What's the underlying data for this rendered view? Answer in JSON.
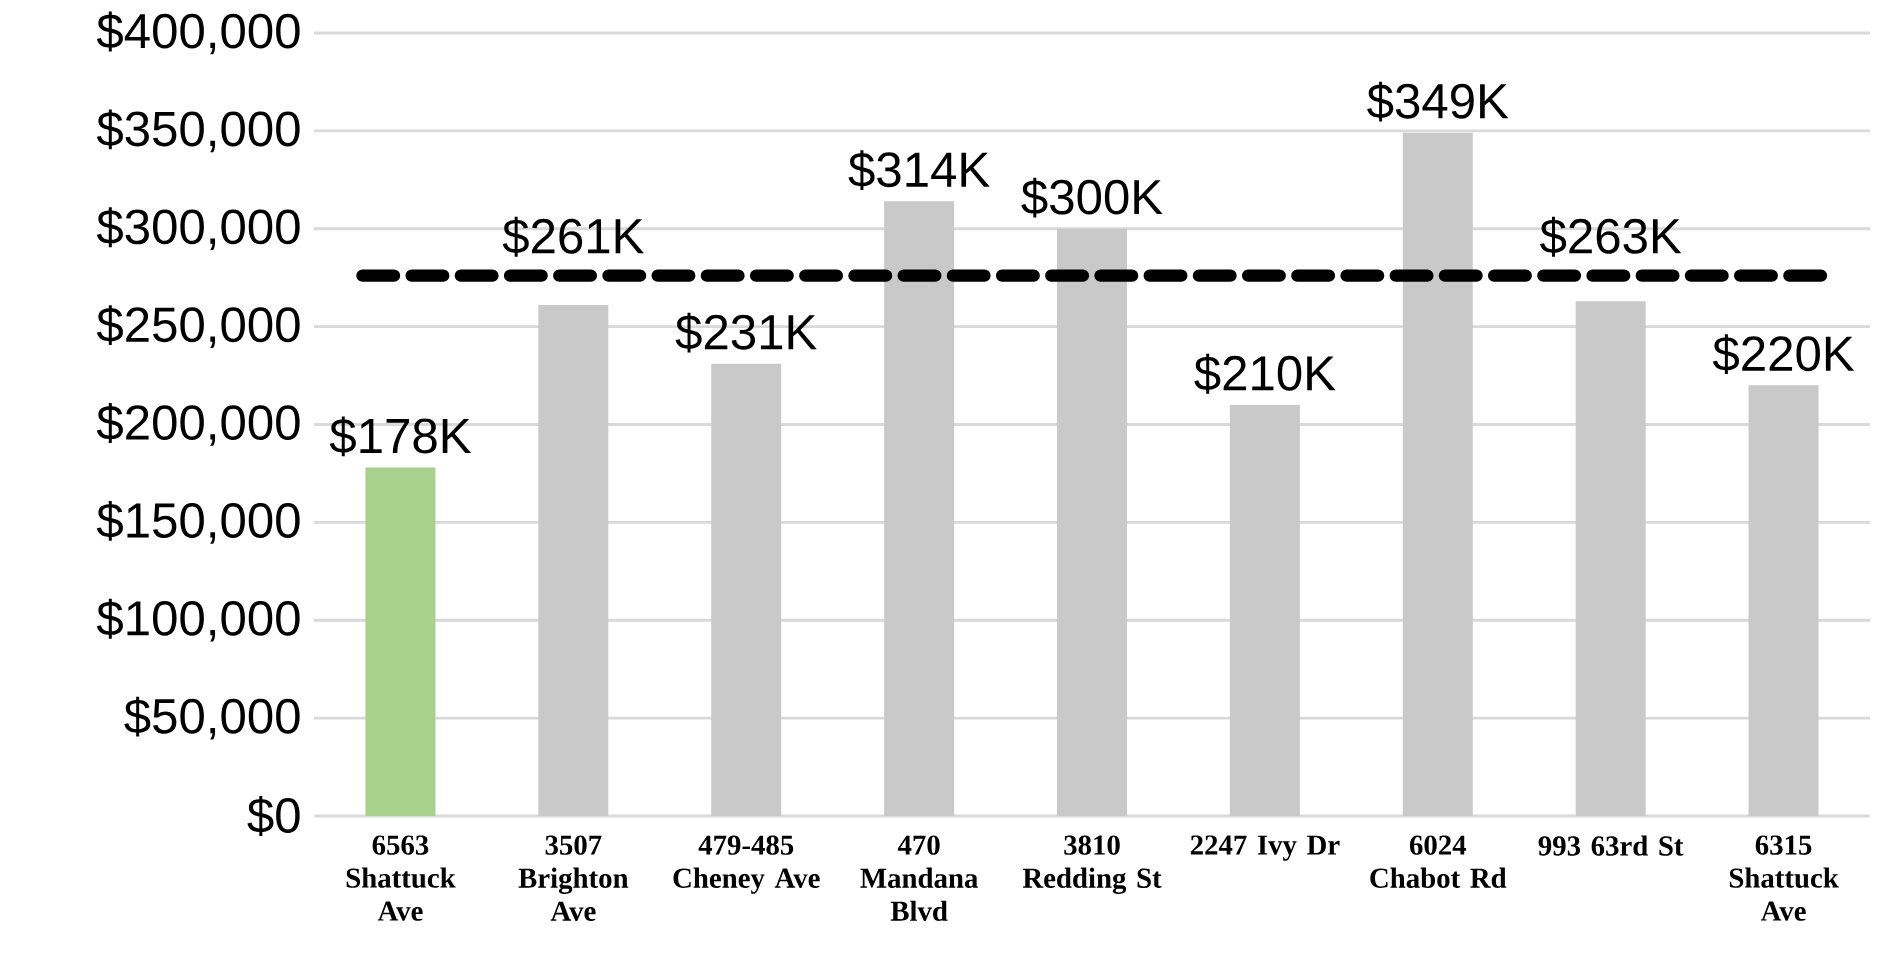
{
  "chart_data": {
    "type": "bar",
    "categories": [
      "6563 Shattuck Ave",
      "3507 Brighton Ave",
      "479-485 Cheney Ave",
      "470 Mandana Blvd",
      "3810 Redding St",
      "2247 Ivy Dr",
      "6024 Chabot Rd",
      "993 63rd St",
      "6315 Shattuck Ave"
    ],
    "values": [
      178000,
      261000,
      231000,
      314000,
      300000,
      210000,
      349000,
      263000,
      220000
    ],
    "value_labels": [
      "$178K",
      "$261K",
      "$231K",
      "$314K",
      "$300K",
      "$210K",
      "$349K",
      "$263K",
      "$220K"
    ],
    "colors": [
      "#a9d18e",
      "#c9c9c9",
      "#c9c9c9",
      "#c9c9c9",
      "#c9c9c9",
      "#c9c9c9",
      "#c9c9c9",
      "#c9c9c9",
      "#c9c9c9"
    ],
    "ylim": [
      0,
      400000
    ],
    "yticks": [
      {
        "value": 0,
        "label": "$0"
      },
      {
        "value": 50000,
        "label": "$50,000"
      },
      {
        "value": 100000,
        "label": "$100,000"
      },
      {
        "value": 150000,
        "label": "$150,000"
      },
      {
        "value": 200000,
        "label": "$200,000"
      },
      {
        "value": 250000,
        "label": "$250,000"
      },
      {
        "value": 300000,
        "label": "$300,000"
      },
      {
        "value": 350000,
        "label": "$350,000"
      },
      {
        "value": 400000,
        "label": "$400,000"
      }
    ],
    "grid": "y",
    "ref_lines": [
      {
        "axis": "y",
        "value": 276000,
        "color": "#000000",
        "line_style": "dashed"
      }
    ]
  }
}
